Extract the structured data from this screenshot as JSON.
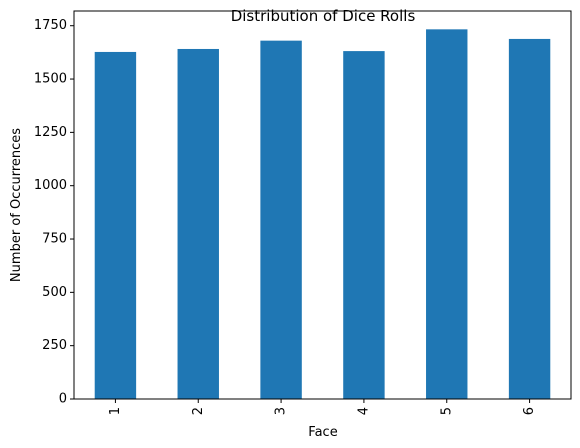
{
  "chart_data": {
    "type": "bar",
    "title": "Distribution of Dice Rolls",
    "xlabel": "Face",
    "ylabel": "Number of Occurrences",
    "categories": [
      "1",
      "2",
      "3",
      "4",
      "5",
      "6"
    ],
    "values": [
      1627,
      1641,
      1680,
      1631,
      1733,
      1688
    ],
    "yticks": [
      0,
      250,
      500,
      750,
      1000,
      1250,
      1500,
      1750
    ],
    "ylim": [
      0,
      1819
    ],
    "bar_color": "#1f77b4",
    "grid": false,
    "legend": "none",
    "xtick_rotation": "vertical"
  }
}
